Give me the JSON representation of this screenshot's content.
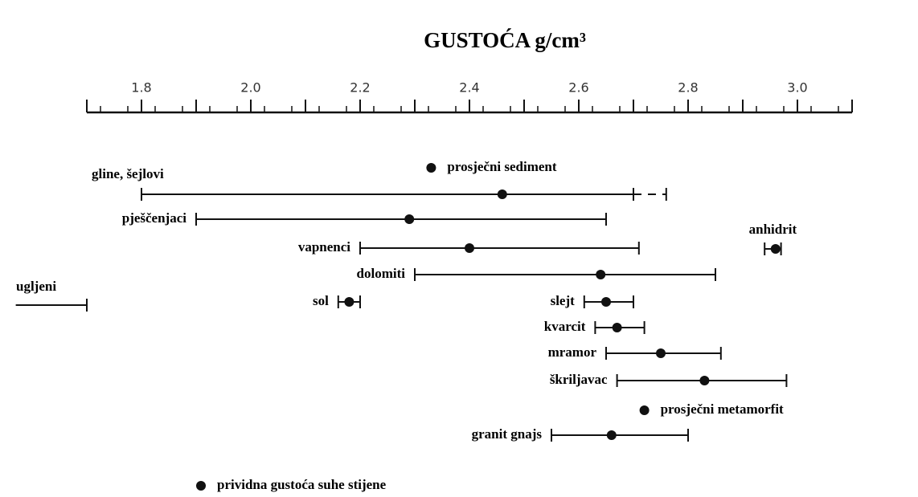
{
  "chart_data": {
    "type": "range",
    "title": "GUSTOĆA g/cm³",
    "xlim": [
      1.7,
      3.1
    ],
    "xticks": [
      1.8,
      {
        "value": 2,
        "label": "2.0"
      },
      2.2,
      2.4,
      2.6,
      2.8,
      {
        "value": 3,
        "label": "3.0"
      }
    ],
    "xminorticks": [
      1.7,
      1.9,
      2.1,
      2.3,
      2.5,
      2.7,
      2.9,
      3.1
    ],
    "color": "#111111",
    "ranges": [
      {
        "name": "gline, šejlovi",
        "low": 1.8,
        "high": 2.7,
        "dashed_high": 2.76,
        "value": 2.46
      },
      {
        "name": "pješčenjaci",
        "low": 1.9,
        "high": 2.65,
        "value": 2.29
      },
      {
        "name": "vapnenci",
        "low": 2.2,
        "high": 2.71,
        "value": 2.4
      },
      {
        "name": "dolomiti",
        "low": 2.3,
        "high": 2.85,
        "value": 2.64
      },
      {
        "name": "ugljeni",
        "low": 1.57,
        "high": 1.7
      },
      {
        "name": "sol",
        "low": 2.16,
        "high": 2.2,
        "value": 2.18
      },
      {
        "name": "slejt",
        "low": 2.61,
        "high": 2.7,
        "value": 2.65
      },
      {
        "name": "kvarcit",
        "low": 2.63,
        "high": 2.72,
        "value": 2.67
      },
      {
        "name": "mramor",
        "low": 2.65,
        "high": 2.86,
        "value": 2.75
      },
      {
        "name": "škriljavac",
        "low": 2.67,
        "high": 2.98,
        "value": 2.83
      },
      {
        "name": "granit gnajs",
        "low": 2.55,
        "high": 2.8,
        "value": 2.66
      },
      {
        "name": "anhidrit",
        "low": 2.94,
        "high": 2.97,
        "value": 2.96
      }
    ],
    "points": [
      {
        "name": "prosječni sediment",
        "value": 2.33
      },
      {
        "name": "prosječni metamorfit",
        "value": 2.72
      }
    ],
    "legend": "prividna gustoća suhe stijene"
  }
}
